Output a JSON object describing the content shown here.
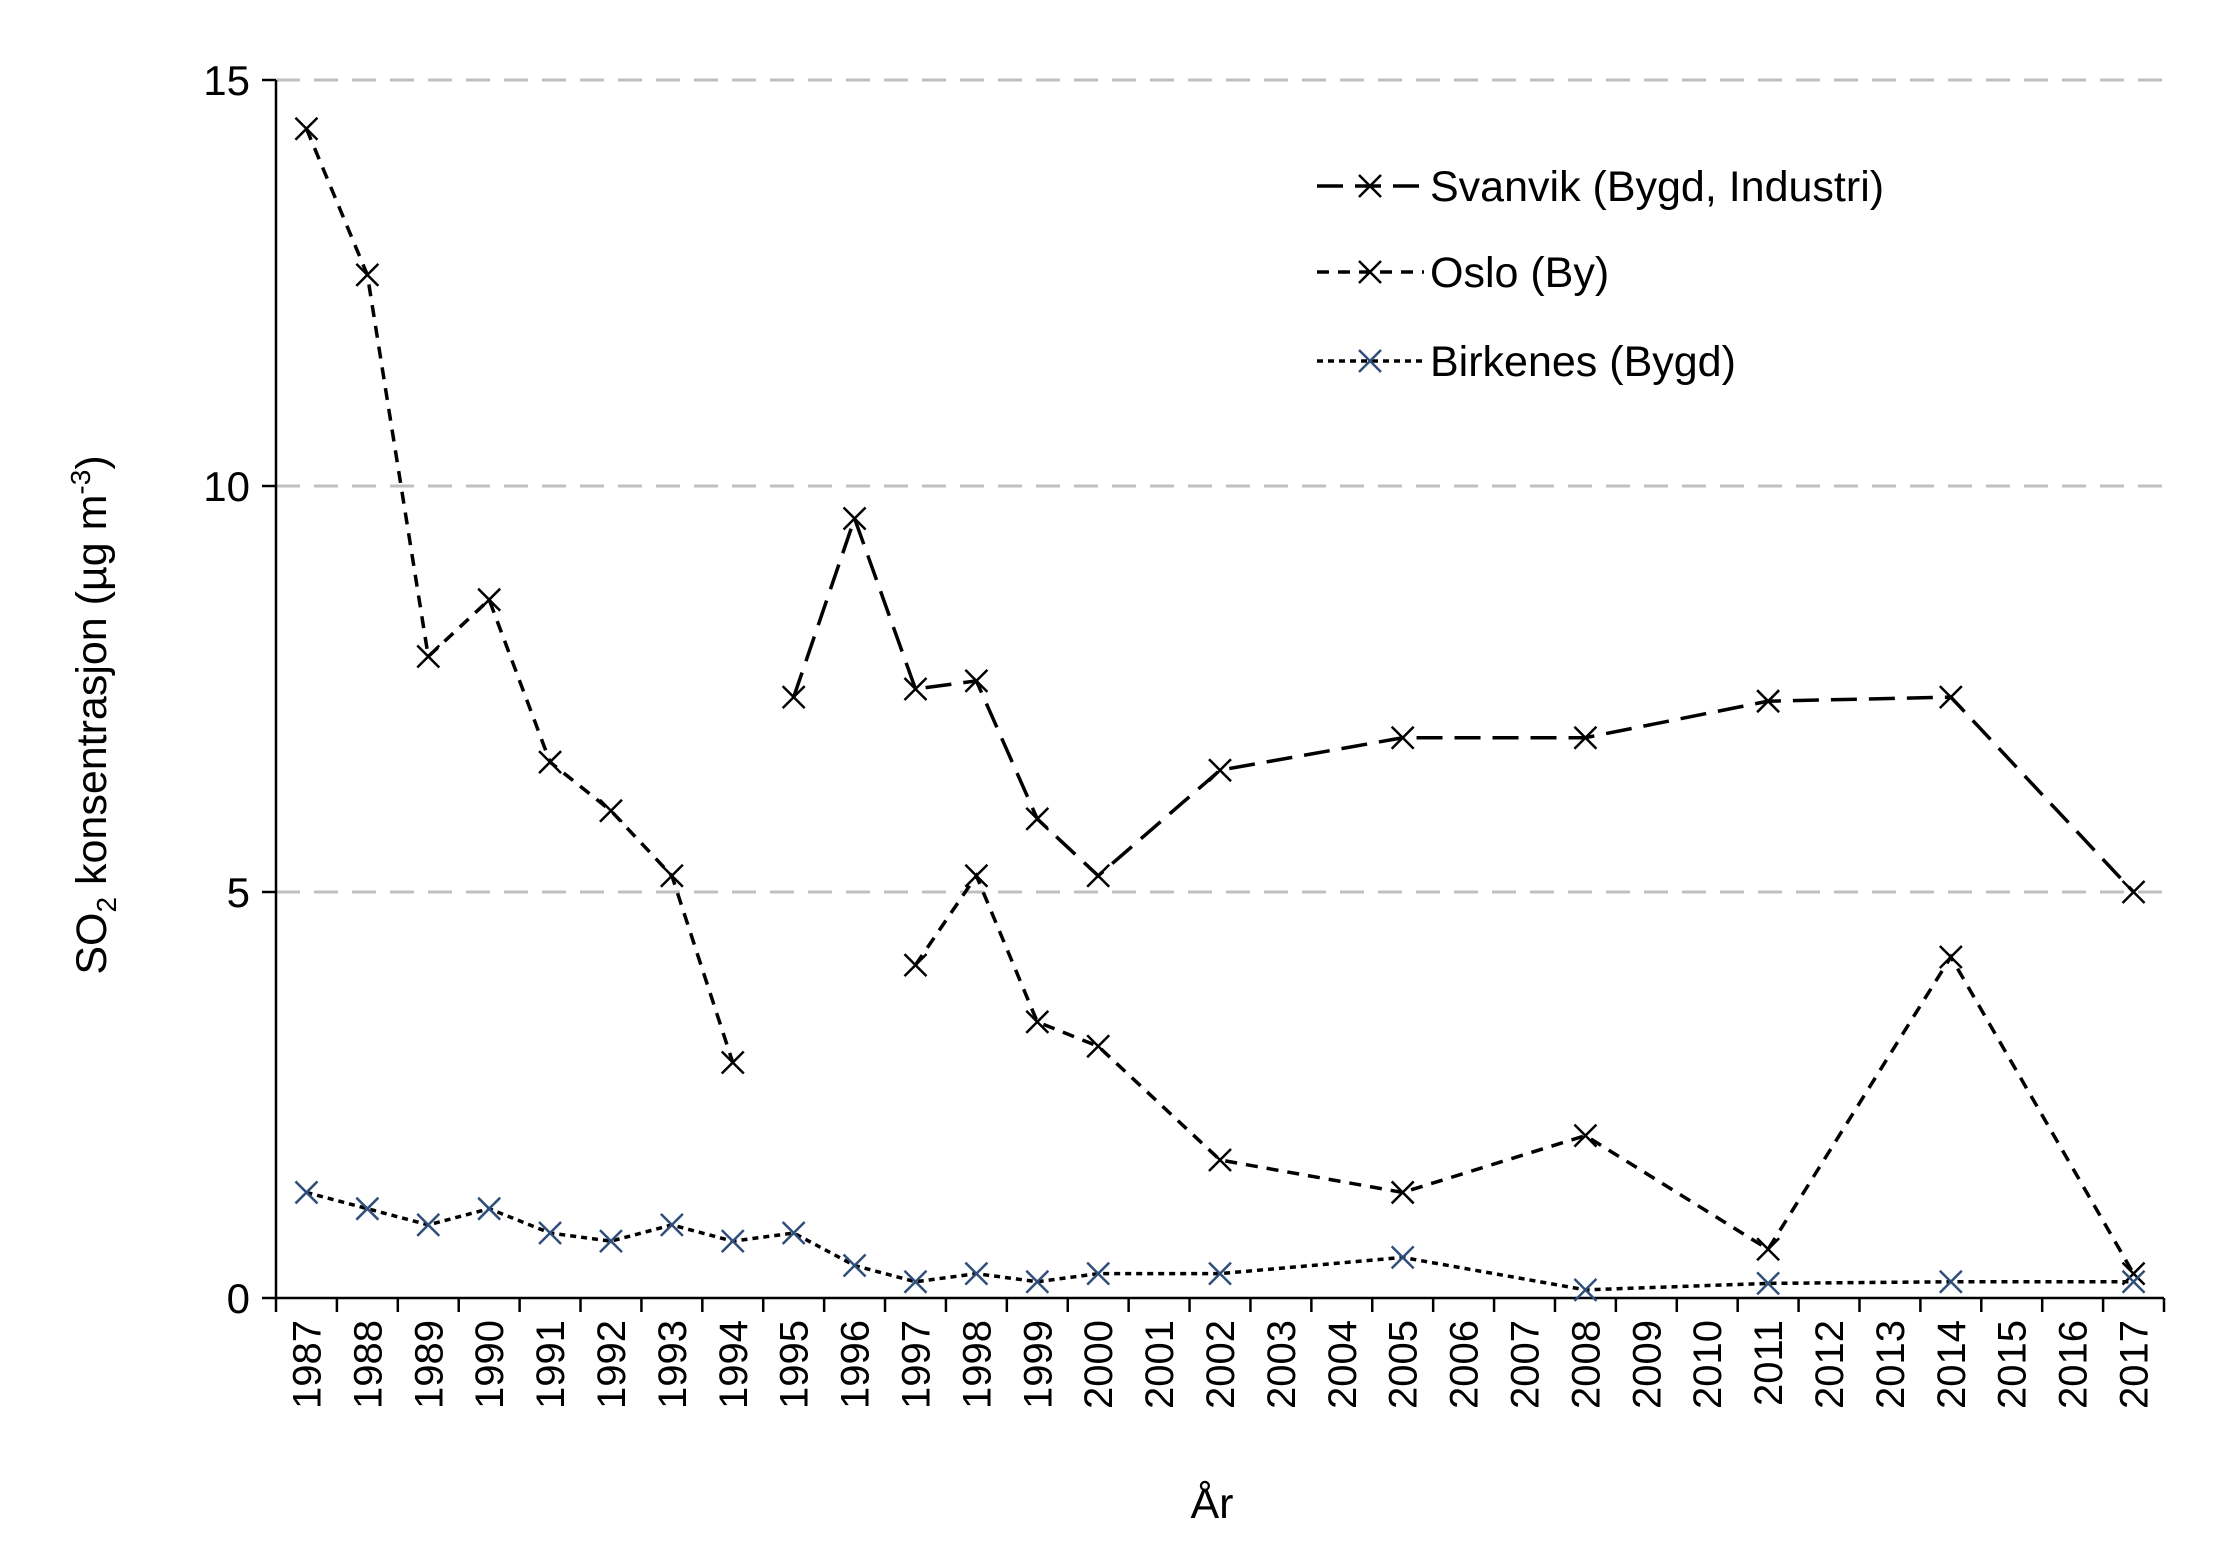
{
  "chart_data": {
    "type": "line",
    "title": "",
    "xlabel": "År",
    "ylabel": "SO2 konsentrasjon (µg m-3)",
    "ylabel_parts": {
      "main": "SO",
      "sub": "2",
      "rest": " konsentrasjon (µg m",
      "sup": "-3",
      "end": ")"
    },
    "ylim": [
      0,
      15
    ],
    "yticks": [
      "0",
      "5",
      "10",
      "15"
    ],
    "grid": "horizontal dashed",
    "legend_position": "top-right",
    "categories": [
      "1987",
      "1988",
      "1989",
      "1990",
      "1991",
      "1992",
      "1993",
      "1994",
      "1995",
      "1996",
      "1997",
      "1998",
      "1999",
      "2000",
      "2001",
      "2002",
      "2003",
      "2004",
      "2005",
      "2006",
      "2007",
      "2008",
      "2009",
      "2010",
      "2011",
      "2012",
      "2013",
      "2014",
      "2015",
      "2016",
      "2017"
    ],
    "series": [
      {
        "name": "Svanvik (Bygd, Industri)",
        "style": "long-dash",
        "color": "#000000",
        "marker_color": "#000000",
        "values": [
          null,
          null,
          null,
          null,
          null,
          null,
          null,
          null,
          7.4,
          9.6,
          7.5,
          7.6,
          5.9,
          5.2,
          null,
          6.5,
          null,
          null,
          6.9,
          null,
          null,
          6.9,
          null,
          null,
          7.35,
          null,
          null,
          7.4,
          null,
          null,
          5.0
        ]
      },
      {
        "name": "Oslo (By)",
        "style": "dash",
        "color": "#000000",
        "marker_color": "#000000",
        "values": [
          14.4,
          12.6,
          7.9,
          8.6,
          6.6,
          6.0,
          5.2,
          2.9,
          "gap",
          "gap",
          4.1,
          5.2,
          3.4,
          3.1,
          null,
          1.7,
          null,
          null,
          1.3,
          null,
          null,
          2.0,
          null,
          null,
          0.6,
          null,
          null,
          4.2,
          null,
          null,
          0.3
        ]
      },
      {
        "name": "Birkenes (Bygd)",
        "style": "dot",
        "color": "#000000",
        "marker_color": "#2f4f7a",
        "values": [
          1.3,
          1.1,
          0.9,
          1.1,
          0.8,
          0.7,
          0.9,
          0.7,
          0.8,
          0.4,
          0.2,
          0.3,
          0.2,
          0.3,
          null,
          0.3,
          null,
          null,
          0.5,
          null,
          null,
          0.1,
          null,
          null,
          0.18,
          null,
          null,
          0.2,
          null,
          null,
          0.2
        ]
      }
    ]
  }
}
